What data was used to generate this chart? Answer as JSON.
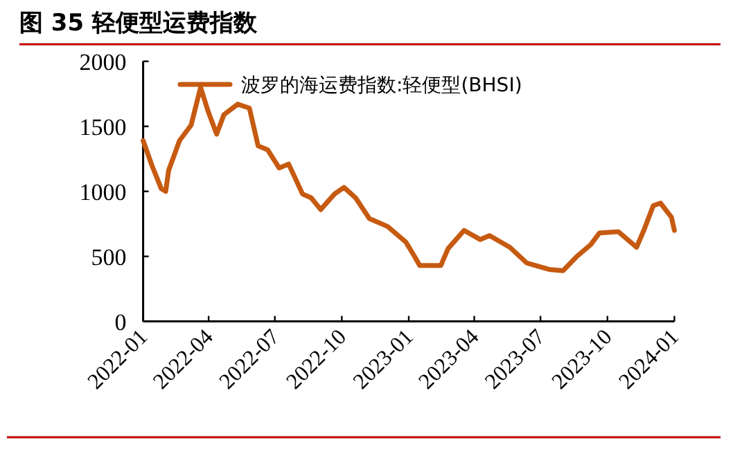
{
  "chart_data": {
    "type": "line",
    "title": "图 35 轻便型运费指数",
    "x": [
      "2022-01-01",
      "2022-01-13",
      "2022-01-26",
      "2022-02-01",
      "2022-02-05",
      "2022-02-20",
      "2022-03-08",
      "2022-03-21",
      "2022-03-31",
      "2022-04-12",
      "2022-04-22",
      "2022-05-11",
      "2022-05-27",
      "2022-06-08",
      "2022-06-21",
      "2022-07-07",
      "2022-07-20",
      "2022-08-08",
      "2022-08-20",
      "2022-09-02",
      "2022-09-21",
      "2022-10-04",
      "2022-10-20",
      "2022-11-08",
      "2022-12-03",
      "2022-12-28",
      "2023-01-10",
      "2023-01-16",
      "2023-02-14",
      "2023-02-24",
      "2023-03-18",
      "2023-04-09",
      "2023-04-22",
      "2023-05-20",
      "2023-06-12",
      "2023-07-13",
      "2023-08-01",
      "2023-08-20",
      "2023-09-08",
      "2023-09-20",
      "2023-10-16",
      "2023-11-10",
      "2023-11-20",
      "2023-12-03",
      "2023-12-13",
      "2023-12-28",
      "2024-01-01"
    ],
    "series": [
      {
        "name": "波罗的海运费指数:轻便型(BHSI)",
        "color": "#c65a11",
        "values": [
          1390,
          1200,
          1020,
          1000,
          1160,
          1390,
          1510,
          1800,
          1620,
          1440,
          1590,
          1670,
          1640,
          1350,
          1320,
          1180,
          1210,
          980,
          950,
          860,
          980,
          1030,
          950,
          790,
          730,
          610,
          490,
          430,
          430,
          560,
          700,
          630,
          660,
          570,
          450,
          400,
          390,
          500,
          590,
          680,
          690,
          570,
          700,
          890,
          910,
          800,
          700
        ]
      }
    ],
    "xlim": [
      "2022-01-01",
      "2024-01-01"
    ],
    "xticks": [
      "2022-01",
      "2022-04",
      "2022-07",
      "2022-10",
      "2023-01",
      "2023-04",
      "2023-07",
      "2023-10",
      "2024-01"
    ],
    "ylim": [
      0,
      2000
    ],
    "yticks": [
      0,
      500,
      1000,
      1500,
      2000
    ],
    "grid": false,
    "legend": "top",
    "line_style": "solid",
    "marker": "none"
  }
}
